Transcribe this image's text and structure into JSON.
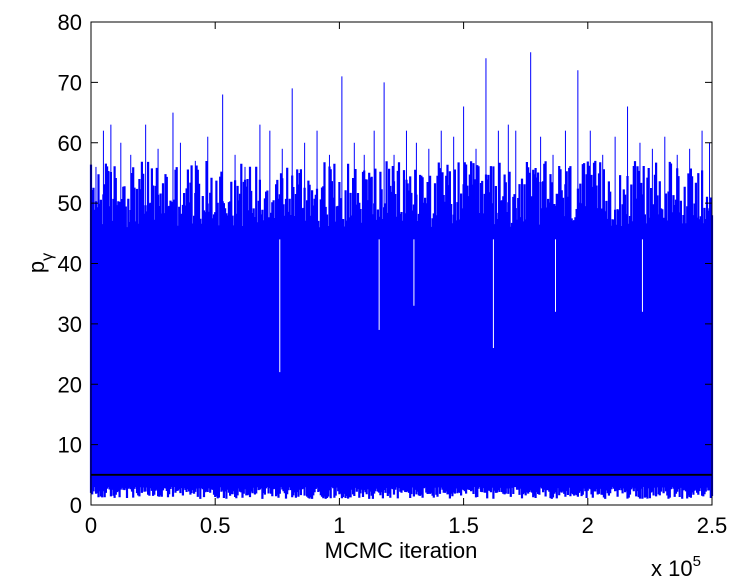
{
  "chart_data": {
    "type": "line",
    "title": "",
    "xlabel": "MCMC iteration",
    "ylabel_main": "p",
    "ylabel_sub": "γ",
    "xlim": [
      0,
      250000
    ],
    "ylim": [
      0,
      80
    ],
    "x_scale_factor_label": "x 10",
    "x_scale_factor_exponent": "5",
    "xticks": [
      0,
      50000,
      100000,
      150000,
      200000,
      250000
    ],
    "xtick_labels": [
      "0",
      "0.5",
      "1",
      "1.5",
      "2",
      "2.5"
    ],
    "yticks": [
      0,
      10,
      20,
      30,
      40,
      50,
      60,
      70,
      80
    ],
    "ytick_labels": [
      "0",
      "10",
      "20",
      "30",
      "40",
      "50",
      "60",
      "70",
      "80"
    ],
    "grid": false,
    "legend": "none",
    "series": [
      {
        "color": "#0000ff",
        "trace_summary": {
          "n_iterations": 250000,
          "typical_min": 1,
          "typical_max": 55,
          "dense_band": [
            1,
            48
          ]
        },
        "peaks": [
          {
            "x": 2000,
            "y": 56
          },
          {
            "x": 5000,
            "y": 62
          },
          {
            "x": 8000,
            "y": 63
          },
          {
            "x": 12000,
            "y": 60
          },
          {
            "x": 16000,
            "y": 58
          },
          {
            "x": 22000,
            "y": 63
          },
          {
            "x": 27000,
            "y": 59
          },
          {
            "x": 33000,
            "y": 65
          },
          {
            "x": 36000,
            "y": 60
          },
          {
            "x": 42000,
            "y": 57
          },
          {
            "x": 47000,
            "y": 61
          },
          {
            "x": 53000,
            "y": 68
          },
          {
            "x": 58000,
            "y": 58
          },
          {
            "x": 62000,
            "y": 56
          },
          {
            "x": 68000,
            "y": 63
          },
          {
            "x": 72000,
            "y": 62
          },
          {
            "x": 77000,
            "y": 59
          },
          {
            "x": 81000,
            "y": 69
          },
          {
            "x": 86000,
            "y": 60
          },
          {
            "x": 91000,
            "y": 62
          },
          {
            "x": 96000,
            "y": 58
          },
          {
            "x": 101000,
            "y": 71
          },
          {
            "x": 106000,
            "y": 60
          },
          {
            "x": 110000,
            "y": 58
          },
          {
            "x": 114000,
            "y": 62
          },
          {
            "x": 118000,
            "y": 70
          },
          {
            "x": 122000,
            "y": 58
          },
          {
            "x": 127000,
            "y": 62
          },
          {
            "x": 131000,
            "y": 60
          },
          {
            "x": 136000,
            "y": 59
          },
          {
            "x": 141000,
            "y": 62
          },
          {
            "x": 146000,
            "y": 61
          },
          {
            "x": 150000,
            "y": 66
          },
          {
            "x": 155000,
            "y": 59
          },
          {
            "x": 159000,
            "y": 74
          },
          {
            "x": 164000,
            "y": 62
          },
          {
            "x": 168000,
            "y": 63
          },
          {
            "x": 171000,
            "y": 62
          },
          {
            "x": 177000,
            "y": 75
          },
          {
            "x": 181000,
            "y": 61
          },
          {
            "x": 186000,
            "y": 58
          },
          {
            "x": 191000,
            "y": 62
          },
          {
            "x": 196000,
            "y": 72
          },
          {
            "x": 201000,
            "y": 62
          },
          {
            "x": 206000,
            "y": 58
          },
          {
            "x": 211000,
            "y": 61
          },
          {
            "x": 216000,
            "y": 66
          },
          {
            "x": 221000,
            "y": 60
          },
          {
            "x": 226000,
            "y": 59
          },
          {
            "x": 231000,
            "y": 61
          },
          {
            "x": 236000,
            "y": 58
          },
          {
            "x": 241000,
            "y": 59
          },
          {
            "x": 246000,
            "y": 62
          },
          {
            "x": 249000,
            "y": 60
          }
        ],
        "dips": [
          {
            "x": 76000,
            "y": 22
          },
          {
            "x": 116000,
            "y": 29
          },
          {
            "x": 130000,
            "y": 33
          },
          {
            "x": 162000,
            "y": 26
          },
          {
            "x": 187000,
            "y": 32
          },
          {
            "x": 222000,
            "y": 32
          }
        ]
      },
      {
        "color": "#000000",
        "style": "horizontal",
        "y": 5
      }
    ]
  }
}
